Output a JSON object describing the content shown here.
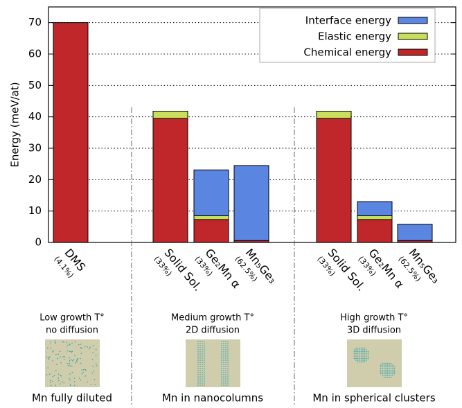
{
  "chart_data": {
    "type": "bar",
    "stacked": true,
    "ylabel": "Energy (meV/at)",
    "categories": [
      "DMS",
      "Solid Sol.",
      "Ge₂Mn α",
      "Mn₅Ge₃",
      "Solid Sol.",
      "Ge₂Mn α",
      "Mn₅Ge₃"
    ],
    "compositions": [
      "(4.1%)",
      "(33%)",
      "(33%)",
      "(62.5%)",
      "(33%)",
      "(33%)",
      "(62.5%)"
    ],
    "series": [
      {
        "name": "Chemical energy",
        "color": "#c0272b",
        "values": [
          70,
          39.5,
          7.3,
          0.6,
          39.5,
          7.3,
          0.6
        ]
      },
      {
        "name": "Elastic energy",
        "color": "#c9df5b",
        "values": [
          0,
          2.3,
          1.2,
          0,
          2.3,
          1.2,
          0
        ]
      },
      {
        "name": "Interface energy",
        "color": "#5a85e0",
        "values": [
          0,
          0,
          14.6,
          23.9,
          0,
          4.5,
          5.2
        ]
      }
    ],
    "ylim": [
      0,
      75
    ],
    "yticks": [
      0,
      10,
      20,
      30,
      40,
      50,
      60,
      70
    ],
    "grid": true,
    "legend": "upper-right"
  },
  "panels": [
    {
      "lines": [
        "Low growth T°",
        "no diffusion"
      ],
      "caption": "Mn fully diluted"
    },
    {
      "lines": [
        "Medium growth T°",
        "2D diffusion"
      ],
      "caption": "Mn in nanocolumns"
    },
    {
      "lines": [
        "High growth T°",
        "3D diffusion"
      ],
      "caption": "Mn in spherical clusters"
    }
  ]
}
